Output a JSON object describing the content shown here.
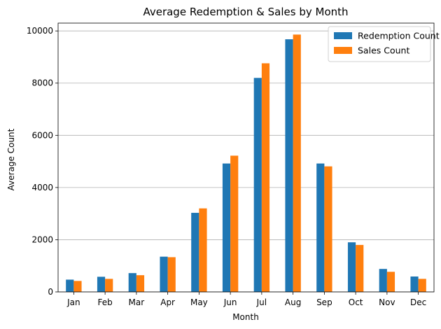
{
  "chart_data": {
    "type": "bar",
    "title": "Average Redemption & Sales by Month",
    "xlabel": "Month",
    "ylabel": "Average Count",
    "categories": [
      "Jan",
      "Feb",
      "Mar",
      "Apr",
      "May",
      "Jun",
      "Jul",
      "Aug",
      "Sep",
      "Oct",
      "Nov",
      "Dec"
    ],
    "series": [
      {
        "name": "Redemption Count",
        "color": "#1f77b4",
        "values": [
          470,
          580,
          720,
          1350,
          3030,
          4920,
          8200,
          9680,
          4920,
          1900,
          880,
          590
        ]
      },
      {
        "name": "Sales Count",
        "color": "#ff7f0e",
        "values": [
          420,
          500,
          640,
          1330,
          3200,
          5220,
          8760,
          9860,
          4810,
          1800,
          770,
          500
        ]
      }
    ],
    "ylim": [
      0,
      10300
    ],
    "yticks": [
      0,
      2000,
      4000,
      6000,
      8000,
      10000
    ],
    "grid": "y",
    "legend_position": "top-right"
  }
}
